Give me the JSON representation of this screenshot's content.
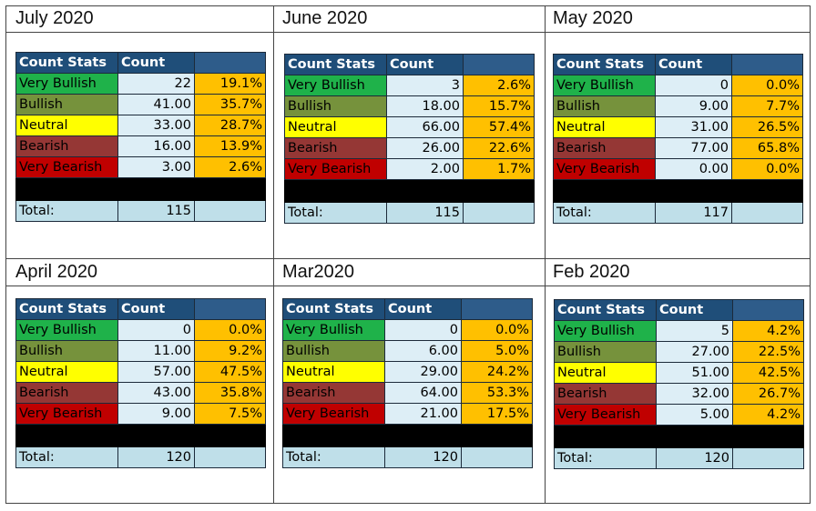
{
  "panels": [
    {
      "month": "July 2020",
      "header": {
        "label": "Count Stats",
        "count": "Count",
        "extra": ""
      },
      "rows": [
        {
          "label": "Very Bullish",
          "count": "22",
          "pct": "19.1%"
        },
        {
          "label": "Bullish",
          "count": "41.00",
          "pct": "35.7%"
        },
        {
          "label": "Neutral",
          "count": "33.00",
          "pct": "28.7%"
        },
        {
          "label": "Bearish",
          "count": "16.00",
          "pct": "13.9%"
        },
        {
          "label": "Very Bearish",
          "count": "3.00",
          "pct": "2.6%"
        }
      ],
      "total": {
        "label": "Total:",
        "count": "115"
      }
    },
    {
      "month": "June 2020",
      "header": {
        "label": "Count Stats",
        "count": "Count",
        "extra": ""
      },
      "rows": [
        {
          "label": "Very Bullish",
          "count": "3",
          "pct": "2.6%"
        },
        {
          "label": "Bullish",
          "count": "18.00",
          "pct": "15.7%"
        },
        {
          "label": "Neutral",
          "count": "66.00",
          "pct": "57.4%"
        },
        {
          "label": "Bearish",
          "count": "26.00",
          "pct": "22.6%"
        },
        {
          "label": "Very Bearish",
          "count": "2.00",
          "pct": "1.7%"
        }
      ],
      "total": {
        "label": "Total:",
        "count": "115"
      }
    },
    {
      "month": "May 2020",
      "header": {
        "label": "Count Stats",
        "count": "Count",
        "extra": ""
      },
      "rows": [
        {
          "label": "Very Bullish",
          "count": "0",
          "pct": "0.0%"
        },
        {
          "label": "Bullish",
          "count": "9.00",
          "pct": "7.7%"
        },
        {
          "label": "Neutral",
          "count": "31.00",
          "pct": "26.5%"
        },
        {
          "label": "Bearish",
          "count": "77.00",
          "pct": "65.8%"
        },
        {
          "label": "Very Bearish",
          "count": "0.00",
          "pct": "0.0%"
        }
      ],
      "total": {
        "label": "Total:",
        "count": "117"
      }
    },
    {
      "month": "April 2020",
      "header": {
        "label": "Count Stats",
        "count": "Count",
        "extra": ""
      },
      "rows": [
        {
          "label": "Very Bullish",
          "count": "0",
          "pct": "0.0%"
        },
        {
          "label": "Bullish",
          "count": "11.00",
          "pct": "9.2%"
        },
        {
          "label": "Neutral",
          "count": "57.00",
          "pct": "47.5%"
        },
        {
          "label": "Bearish",
          "count": "43.00",
          "pct": "35.8%"
        },
        {
          "label": "Very Bearish",
          "count": "9.00",
          "pct": "7.5%"
        }
      ],
      "total": {
        "label": "Total:",
        "count": "120"
      }
    },
    {
      "month": "Mar2020",
      "header": {
        "label": "Count Stats",
        "count": "Count",
        "extra": ""
      },
      "rows": [
        {
          "label": "Very Bullish",
          "count": "0",
          "pct": "0.0%"
        },
        {
          "label": "Bullish",
          "count": "6.00",
          "pct": "5.0%"
        },
        {
          "label": "Neutral",
          "count": "29.00",
          "pct": "24.2%"
        },
        {
          "label": "Bearish",
          "count": "64.00",
          "pct": "53.3%"
        },
        {
          "label": "Very Bearish",
          "count": "21.00",
          "pct": "17.5%"
        }
      ],
      "total": {
        "label": "Total:",
        "count": "120"
      }
    },
    {
      "month": "Feb 2020",
      "header": {
        "label": "Count Stats",
        "count": "Count",
        "extra": ""
      },
      "rows": [
        {
          "label": "Very Bullish",
          "count": "5",
          "pct": "4.2%"
        },
        {
          "label": "Bullish",
          "count": "27.00",
          "pct": "22.5%"
        },
        {
          "label": "Neutral",
          "count": "51.00",
          "pct": "42.5%"
        },
        {
          "label": "Bearish",
          "count": "32.00",
          "pct": "26.7%"
        },
        {
          "label": "Very Bearish",
          "count": "5.00",
          "pct": "4.2%"
        }
      ],
      "total": {
        "label": "Total:",
        "count": "120"
      }
    }
  ]
}
